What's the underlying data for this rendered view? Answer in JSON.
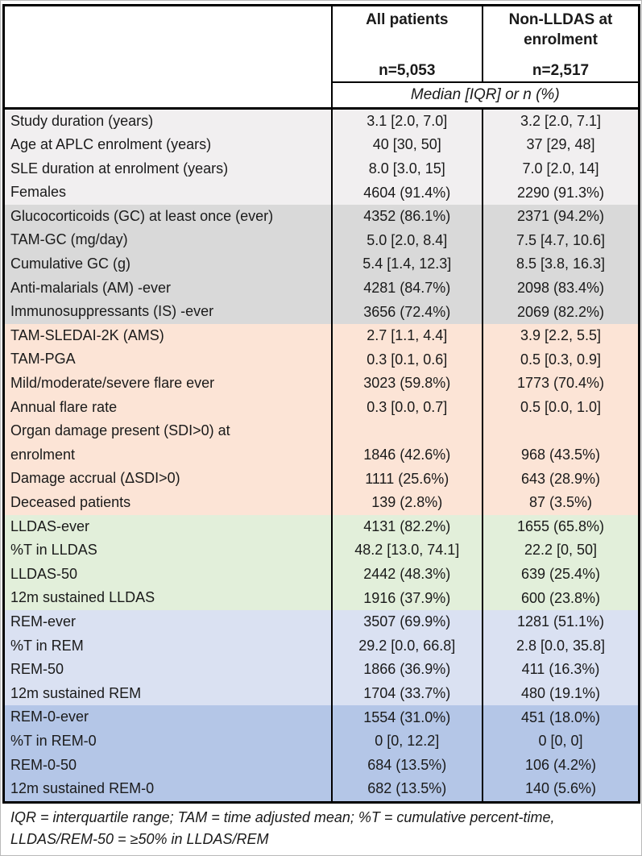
{
  "table": {
    "columns": [
      {
        "title": "All patients",
        "n": "n=5,053"
      },
      {
        "title": "Non-LLDAS at enrolment",
        "n": "n=2,517"
      }
    ],
    "subheader": "Median [IQR] or n (%)",
    "sections": [
      {
        "name": "demographics",
        "color": "#f1eff0",
        "rows": [
          {
            "label": "Study duration (years)",
            "all": "3.1 [2.0, 7.0]",
            "non": "3.2 [2.0, 7.1]"
          },
          {
            "label": "Age at APLC enrolment (years)",
            "all": "40 [30, 50]",
            "non": "37 [29, 48]"
          },
          {
            "label": "SLE duration at enrolment (years)",
            "all": "8.0 [3.0, 15]",
            "non": "7.0 [2.0, 14]"
          },
          {
            "label": "Females",
            "all": "4604 (91.4%)",
            "non": "2290 (91.3%)"
          }
        ]
      },
      {
        "name": "medications",
        "color": "#d9d9d9",
        "rows": [
          {
            "label": "Glucocorticoids (GC) at least once (ever)",
            "all": "4352 (86.1%)",
            "non": "2371 (94.2%)"
          },
          {
            "label": "TAM-GC (mg/day)",
            "all": "5.0 [2.0, 8.4]",
            "non": "7.5 [4.7, 10.6]"
          },
          {
            "label": "Cumulative GC (g)",
            "all": "5.4 [1.4, 12.3]",
            "non": "8.5 [3.8, 16.3]"
          },
          {
            "label": "Anti-malarials (AM) -ever",
            "all": "4281 (84.7%)",
            "non": "2098 (83.4%)"
          },
          {
            "label": "Immunosuppressants (IS) -ever",
            "all": "3656 (72.4%)",
            "non": "2069 (82.2%)"
          }
        ]
      },
      {
        "name": "disease-activity",
        "color": "#fce4d6",
        "rows": [
          {
            "label": "TAM-SLEDAI-2K (AMS)",
            "all": "2.7 [1.1, 4.4]",
            "non": "3.9 [2.2, 5.5]"
          },
          {
            "label": "TAM-PGA",
            "all": "0.3 [0.1, 0.6]",
            "non": "0.5 [0.3, 0.9]"
          },
          {
            "label": "Mild/moderate/severe flare ever",
            "all": "3023 (59.8%)",
            "non": "1773 (70.4%)"
          },
          {
            "label": "Annual flare rate",
            "all": "0.3 [0.0, 0.7]",
            "non": "0.5 [0.0, 1.0]"
          },
          {
            "label": "Organ damage present (SDI>0) at\nenrolment",
            "all": "1846 (42.6%)",
            "non": "968 (43.5%)"
          },
          {
            "label": "Damage accrual (ΔSDI>0)",
            "all": "1111 (25.6%)",
            "non": "643 (28.9%)"
          },
          {
            "label": "Deceased patients",
            "all": "139 (2.8%)",
            "non": "87 (3.5%)"
          }
        ]
      },
      {
        "name": "lldas",
        "color": "#e2efda",
        "rows": [
          {
            "label": "LLDAS-ever",
            "all": "4131 (82.2%)",
            "non": "1655 (65.8%)"
          },
          {
            "label": "%T in LLDAS",
            "all": "48.2 [13.0, 74.1]",
            "non": "22.2 [0, 50]"
          },
          {
            "label": "LLDAS-50",
            "all": "2442 (48.3%)",
            "non": "639 (25.4%)"
          },
          {
            "label": "12m sustained LLDAS",
            "all": "1916 (37.9%)",
            "non": "600 (23.8%)"
          }
        ]
      },
      {
        "name": "rem",
        "color": "#dae1f2",
        "rows": [
          {
            "label": "REM-ever",
            "all": "3507 (69.9%)",
            "non": "1281 (51.1%)"
          },
          {
            "label": "%T in REM",
            "all": "29.2 [0.0, 66.8]",
            "non": "2.8 [0.0, 35.8]"
          },
          {
            "label": "REM-50",
            "all": "1866 (36.9%)",
            "non": "411 (16.3%)"
          },
          {
            "label": "12m sustained REM",
            "all": "1704 (33.7%)",
            "non": "480 (19.1%)"
          }
        ]
      },
      {
        "name": "rem-0",
        "color": "#b4c6e7",
        "rows": [
          {
            "label": "REM-0-ever",
            "all": "1554 (31.0%)",
            "non": "451 (18.0%)"
          },
          {
            "label": "%T in REM-0",
            "all": "0 [0, 12.2]",
            "non": "0 [0, 0]"
          },
          {
            "label": "REM-0-50",
            "all": "684 (13.5%)",
            "non": "106 (4.2%)"
          },
          {
            "label": "12m sustained REM-0",
            "all": "682 (13.5%)",
            "non": "140 (5.6%)"
          }
        ]
      }
    ],
    "footnote": "IQR = interquartile range; TAM = time adjusted mean; %T = cumulative percent-time,\nLLDAS/REM-50 = ≥50% in LLDAS/REM",
    "border_color": "#000000"
  }
}
